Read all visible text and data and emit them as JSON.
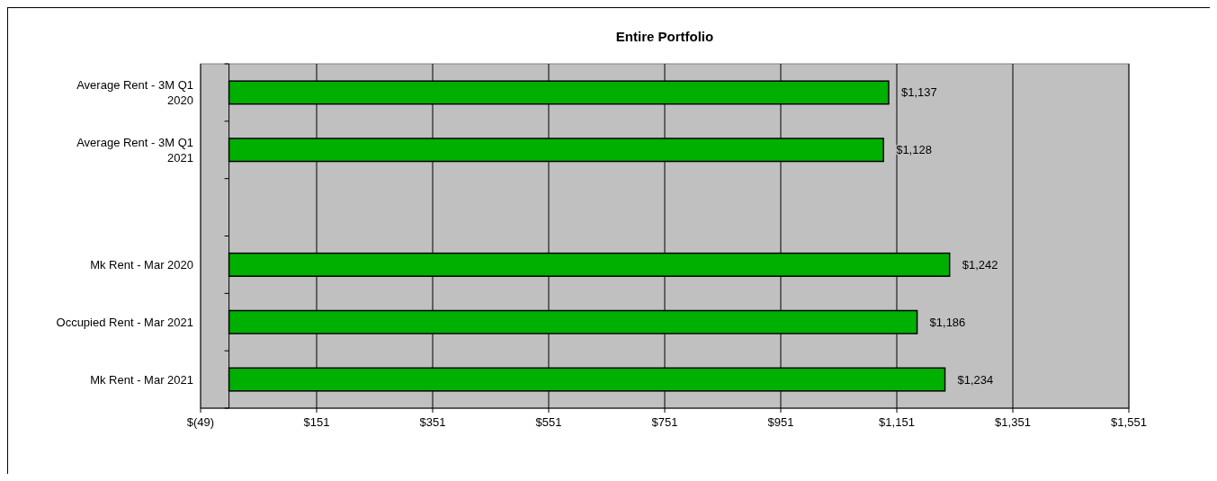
{
  "chart_data": {
    "type": "bar",
    "orientation": "horizontal",
    "title": "Entire Portfolio",
    "categories": [
      "Average Rent  - 3M Q1 2020",
      "Average Rent  - 3M Q1 2021",
      null,
      "Mk Rent - Mar 2020",
      "Occupied Rent - Mar 2021",
      "Mk Rent - Mar 2021"
    ],
    "values": [
      1137,
      1128,
      null,
      1242,
      1186,
      1234
    ],
    "value_labels": [
      "$1,137",
      "$1,128",
      null,
      "$1,242",
      "$1,186",
      "$1,234"
    ],
    "color": "#00b000",
    "xlim": [
      -49,
      1551
    ],
    "xticks": [
      {
        "value": -49,
        "label": "$(49)"
      },
      {
        "value": 151,
        "label": "$151"
      },
      {
        "value": 351,
        "label": "$351"
      },
      {
        "value": 551,
        "label": "$551"
      },
      {
        "value": 751,
        "label": "$751"
      },
      {
        "value": 951,
        "label": "$951"
      },
      {
        "value": 1151,
        "label": "$1,151"
      },
      {
        "value": 1351,
        "label": "$1,351"
      },
      {
        "value": 1551,
        "label": "$1,551"
      }
    ],
    "grid": "x"
  }
}
